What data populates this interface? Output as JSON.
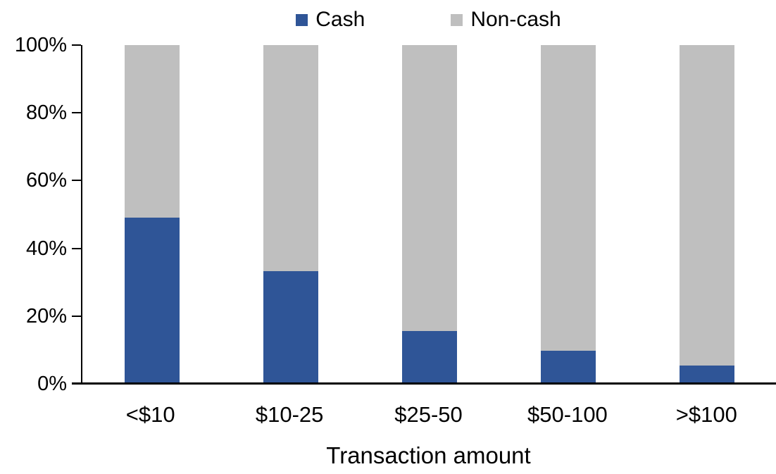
{
  "chart_data": {
    "type": "bar",
    "stacked": true,
    "title": "",
    "xlabel": "Transaction amount",
    "ylabel": "",
    "categories": [
      "<$10",
      "$10-25",
      "$25-50",
      "$50-100",
      ">$100"
    ],
    "series": [
      {
        "name": "Cash",
        "color": "#2F5597",
        "values": [
          49,
          33.3,
          15.6,
          9.7,
          5.4
        ]
      },
      {
        "name": "Non-cash",
        "color": "#BFBFBF",
        "values": [
          51,
          66.7,
          84.4,
          90.3,
          94.6
        ]
      }
    ],
    "y_ticks": [
      "0%",
      "20%",
      "40%",
      "60%",
      "80%",
      "100%"
    ],
    "ylim": [
      0,
      100
    ],
    "grid": false,
    "legend_position": "top",
    "colors": {
      "cash": "#2F5597",
      "non_cash": "#BFBFBF",
      "axis": "#000000",
      "text": "#000000",
      "background": "#FFFFFF"
    }
  }
}
